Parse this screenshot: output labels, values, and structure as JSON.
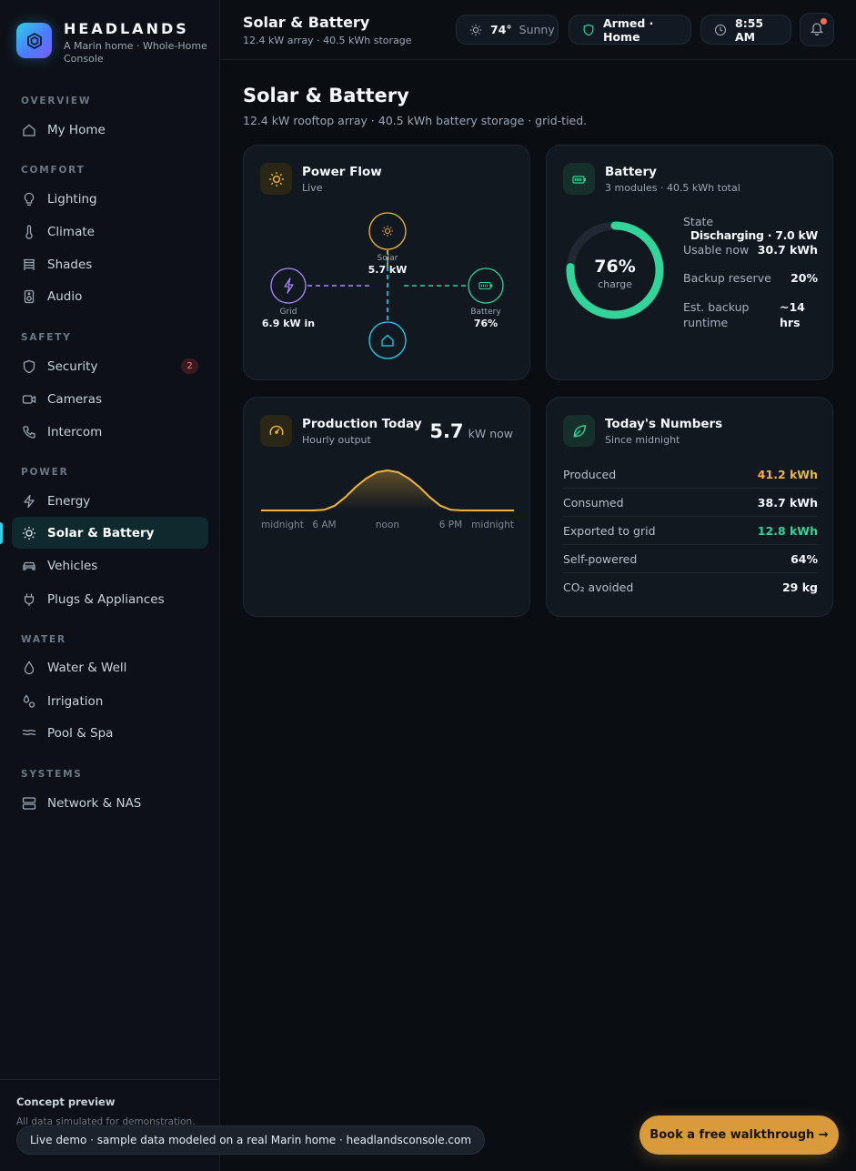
{
  "brand": {
    "name": "HEADLANDS",
    "subtitle": "A Marin home · Whole-Home Console"
  },
  "nav": {
    "sections": [
      "OVERVIEW",
      "COMFORT",
      "SAFETY",
      "POWER",
      "WATER",
      "SYSTEMS"
    ],
    "items": [
      {
        "label": "My Home",
        "icon": "home-icon"
      },
      {
        "label": "Lighting",
        "icon": "bulb-icon"
      },
      {
        "label": "Climate",
        "icon": "thermometer-icon"
      },
      {
        "label": "Shades",
        "icon": "shades-icon"
      },
      {
        "label": "Audio",
        "icon": "speaker-icon"
      },
      {
        "label": "Security",
        "icon": "shield-icon",
        "badge": "2"
      },
      {
        "label": "Cameras",
        "icon": "camera-icon"
      },
      {
        "label": "Intercom",
        "icon": "phone-icon"
      },
      {
        "label": "Energy",
        "icon": "bolt-icon"
      },
      {
        "label": "Solar & Battery",
        "icon": "sun-icon",
        "active": true
      },
      {
        "label": "Vehicles",
        "icon": "car-icon"
      },
      {
        "label": "Plugs & Appliances",
        "icon": "plug-icon"
      },
      {
        "label": "Water & Well",
        "icon": "drop-icon"
      },
      {
        "label": "Irrigation",
        "icon": "sprinkler-icon"
      },
      {
        "label": "Pool & Spa",
        "icon": "waves-icon"
      },
      {
        "label": "Network & NAS",
        "icon": "server-icon"
      }
    ]
  },
  "sidebar_footer": {
    "title": "Concept preview",
    "text": "All data simulated for demonstration."
  },
  "topbar": {
    "title": "Solar & Battery",
    "subtitle": "12.4 kW array · 40.5 kWh storage",
    "weather_temp": "74°",
    "weather_desc": "Sunny",
    "security": "Armed · Home",
    "time": "8:55 AM"
  },
  "page": {
    "title": "Solar & Battery",
    "subtitle": "12.4 kW rooftop array · 40.5 kWh battery storage · grid-tied."
  },
  "power_flow": {
    "title": "Power Flow",
    "sub": "Live",
    "solar_label": "Solar",
    "solar_value": "5.7 kW",
    "grid_label": "Grid",
    "grid_value": "6.9 kW in",
    "battery_label": "Battery",
    "battery_value": "76%"
  },
  "battery": {
    "title": "Battery",
    "sub": "3 modules · 40.5 kWh total",
    "charge_pct": 76,
    "charge_text": "76%",
    "charge_label": "charge",
    "stats": [
      {
        "label": "State",
        "value": "Discharging · 7.0 kW"
      },
      {
        "label": "Usable now",
        "value": "30.7 kWh"
      },
      {
        "label": "Backup reserve",
        "value": "20%"
      },
      {
        "label": "Est. backup runtime",
        "value": "~14 hrs"
      }
    ]
  },
  "production": {
    "title": "Production Today",
    "sub": "Hourly output",
    "now_value": "5.7",
    "now_unit": "kW now"
  },
  "chart_data": {
    "type": "area",
    "x": [
      0,
      1,
      2,
      3,
      4,
      5,
      6,
      7,
      8,
      9,
      10,
      11,
      12,
      13,
      14,
      15,
      16,
      17,
      18,
      19,
      20,
      21,
      22,
      23,
      24
    ],
    "values": [
      0,
      0,
      0,
      0,
      0,
      0,
      0.1,
      0.8,
      2.2,
      3.9,
      5.3,
      6.3,
      6.6,
      6.3,
      5.3,
      3.9,
      2.2,
      0.8,
      0.1,
      0,
      0,
      0,
      0,
      0,
      0
    ],
    "tick_labels": [
      "midnight",
      "6 AM",
      "noon",
      "6 PM",
      "midnight"
    ],
    "tick_positions": [
      0,
      6,
      12,
      18,
      24
    ],
    "ylim": [
      0,
      7.5
    ],
    "title": "",
    "xlabel": "",
    "ylabel": "",
    "grid": false,
    "color": "#f0b43c"
  },
  "numbers": {
    "title": "Today's Numbers",
    "sub": "Since midnight",
    "rows": [
      {
        "label": "Produced",
        "value": "41.2 kWh",
        "color": "#f0b43c"
      },
      {
        "label": "Consumed",
        "value": "38.7 kWh",
        "color": "#f4f7fb"
      },
      {
        "label": "Exported to grid",
        "value": "12.8 kWh",
        "color": "#34d399"
      },
      {
        "label": "Self-powered",
        "value": "64%",
        "color": "#f4f7fb"
      },
      {
        "label": "CO₂ avoided",
        "value": "29 kg",
        "color": "#f4f7fb"
      }
    ]
  },
  "demo": {
    "text": "Live demo · sample data modeled on a real Marin home · headlandsconsole.com",
    "cta": "Book a free walkthrough →"
  },
  "colors": {
    "accent": "#2fd0e8",
    "solar": "#f0b43c",
    "battery": "#34d399",
    "grid": "#a78bfa",
    "home": "#22d3ee",
    "cta": "#d99a3b"
  }
}
